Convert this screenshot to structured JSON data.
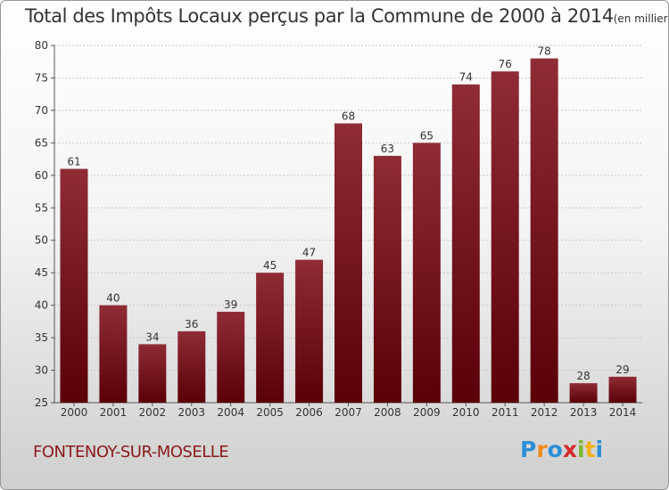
{
  "chart_data": {
    "type": "bar",
    "title": "Total des Impôts Locaux perçus par la Commune de 2000 à 2014",
    "unit": "(en milliers d'€)",
    "categories": [
      "2000",
      "2001",
      "2002",
      "2003",
      "2004",
      "2005",
      "2006",
      "2007",
      "2008",
      "2009",
      "2010",
      "2011",
      "2012",
      "2013",
      "2014"
    ],
    "values": [
      61,
      40,
      34,
      36,
      39,
      45,
      47,
      68,
      63,
      65,
      74,
      76,
      78,
      28,
      29
    ],
    "ylim": [
      25,
      80
    ],
    "yticks": [
      25,
      30,
      35,
      40,
      45,
      50,
      55,
      60,
      65,
      70,
      75,
      80
    ],
    "grid": true,
    "bar_color": "#7a1a22"
  },
  "commune": "FONTENOY-SUR-MOSELLE",
  "logo": {
    "letters": [
      "P",
      "r",
      "o",
      "x",
      "i",
      "t",
      "i"
    ],
    "colors": [
      "#2b8fd6",
      "#f08a1c",
      "#2b8fd6",
      "#d42a2a",
      "#7cb82f",
      "#f0b21c",
      "#2b8fd6"
    ]
  }
}
